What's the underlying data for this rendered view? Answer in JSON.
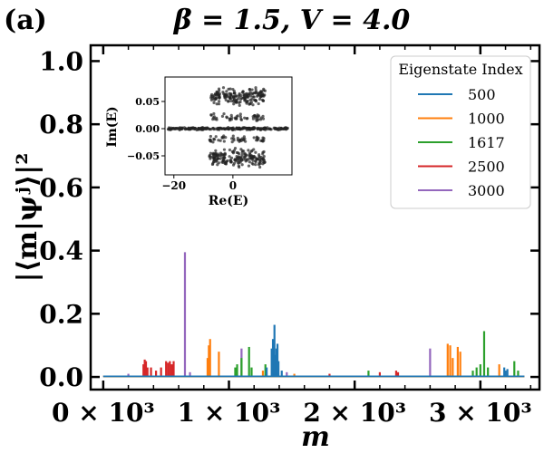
{
  "panel_label": "(a)",
  "chart_data": [
    {
      "type": "line",
      "title": "β = 1.5, V = 4.0",
      "xlabel": "m",
      "ylabel": "|⟨m|ψʲ⟩|²",
      "xlim": [
        -100,
        3470
      ],
      "ylim": [
        -0.04,
        1.05
      ],
      "x_ticks": [
        {
          "value": 0,
          "label": "0 × 10³"
        },
        {
          "value": 1000,
          "label": "1 × 10³"
        },
        {
          "value": 2000,
          "label": "2 × 10³"
        },
        {
          "value": 3000,
          "label": "3 × 10³"
        }
      ],
      "y_ticks": [
        {
          "value": 0.0,
          "label": "0.0"
        },
        {
          "value": 0.2,
          "label": "0.2"
        },
        {
          "value": 0.4,
          "label": "0.4"
        },
        {
          "value": 0.6,
          "label": "0.6"
        },
        {
          "value": 0.8,
          "label": "0.8"
        },
        {
          "value": 1.0,
          "label": "1.0"
        }
      ],
      "legend": {
        "title": "Eigenstate Index",
        "placement": "top-right"
      },
      "series": [
        {
          "name": "500",
          "color": "#1f77b4",
          "peaks": [
            [
              1340,
              0.09
            ],
            [
              1350,
              0.12
            ],
            [
              1362,
              0.165
            ],
            [
              1370,
              0.07
            ],
            [
              1378,
              0.09
            ],
            [
              1386,
              0.105
            ],
            [
              1394,
              0.05
            ],
            [
              1300,
              0.03
            ],
            [
              1420,
              0.02
            ],
            [
              3190,
              0.03
            ],
            [
              3200,
              0.02
            ],
            [
              3215,
              0.025
            ]
          ]
        },
        {
          "name": "1000",
          "color": "#ff7f0e",
          "peaks": [
            [
              830,
              0.06
            ],
            [
              840,
              0.1
            ],
            [
              850,
              0.12
            ],
            [
              920,
              0.08
            ],
            [
              1270,
              0.02
            ],
            [
              1520,
              0.01
            ],
            [
              2740,
              0.105
            ],
            [
              2760,
              0.1
            ],
            [
              2780,
              0.06
            ],
            [
              2820,
              0.095
            ],
            [
              2840,
              0.08
            ],
            [
              3150,
              0.04
            ]
          ]
        },
        {
          "name": "1617",
          "color": "#2ca02c",
          "peaks": [
            [
              1050,
              0.03
            ],
            [
              1065,
              0.04
            ],
            [
              1100,
              0.06
            ],
            [
              1160,
              0.095
            ],
            [
              1180,
              0.03
            ],
            [
              1290,
              0.04
            ],
            [
              2110,
              0.02
            ],
            [
              2940,
              0.02
            ],
            [
              2970,
              0.03
            ],
            [
              3000,
              0.04
            ],
            [
              3030,
              0.145
            ],
            [
              3060,
              0.03
            ],
            [
              3270,
              0.05
            ],
            [
              3300,
              0.02
            ]
          ]
        },
        {
          "name": "2500",
          "color": "#d62728",
          "peaks": [
            [
              320,
              0.04
            ],
            [
              330,
              0.055
            ],
            [
              340,
              0.05
            ],
            [
              352,
              0.03
            ],
            [
              380,
              0.03
            ],
            [
              420,
              0.02
            ],
            [
              460,
              0.03
            ],
            [
              500,
              0.05
            ],
            [
              515,
              0.045
            ],
            [
              530,
              0.05
            ],
            [
              545,
              0.04
            ],
            [
              560,
              0.05
            ],
            [
              1800,
              0.01
            ],
            [
              2200,
              0.015
            ],
            [
              2330,
              0.02
            ],
            [
              2345,
              0.015
            ]
          ]
        },
        {
          "name": "3000",
          "color": "#9467bd",
          "peaks": [
            [
              200,
              0.01
            ],
            [
              650,
              0.395
            ],
            [
              690,
              0.015
            ],
            [
              1100,
              0.09
            ],
            [
              1460,
              0.015
            ],
            [
              2600,
              0.09
            ]
          ]
        }
      ]
    },
    {
      "type": "scatter",
      "title": "",
      "xlabel": "Re(E)",
      "ylabel": "Im(E)",
      "xlim": [
        -23,
        20
      ],
      "ylim": [
        -0.085,
        0.095
      ],
      "x_ticks": [
        {
          "value": -20,
          "label": "−20"
        },
        {
          "value": 0,
          "label": "0"
        }
      ],
      "y_ticks": [
        {
          "value": 0.05,
          "label": "0.05"
        },
        {
          "value": 0.0,
          "label": "0.00"
        },
        {
          "value": -0.05,
          "label": "−0.05"
        }
      ],
      "color": "#222222",
      "bands": [
        {
          "im_center": 0.0,
          "im_spread": 0.003,
          "re_range": [
            -22,
            19
          ],
          "count": 260
        },
        {
          "im_center": 0.06,
          "im_spread": 0.02,
          "re_range": [
            -8,
            11
          ],
          "count": 180
        },
        {
          "im_center": -0.055,
          "im_spread": 0.022,
          "re_range": [
            -8,
            11
          ],
          "count": 180
        },
        {
          "im_center": 0.02,
          "im_spread": 0.01,
          "re_range": [
            -8,
            11
          ],
          "count": 50
        },
        {
          "im_center": -0.02,
          "im_spread": 0.01,
          "re_range": [
            -8,
            11
          ],
          "count": 50
        }
      ]
    }
  ]
}
